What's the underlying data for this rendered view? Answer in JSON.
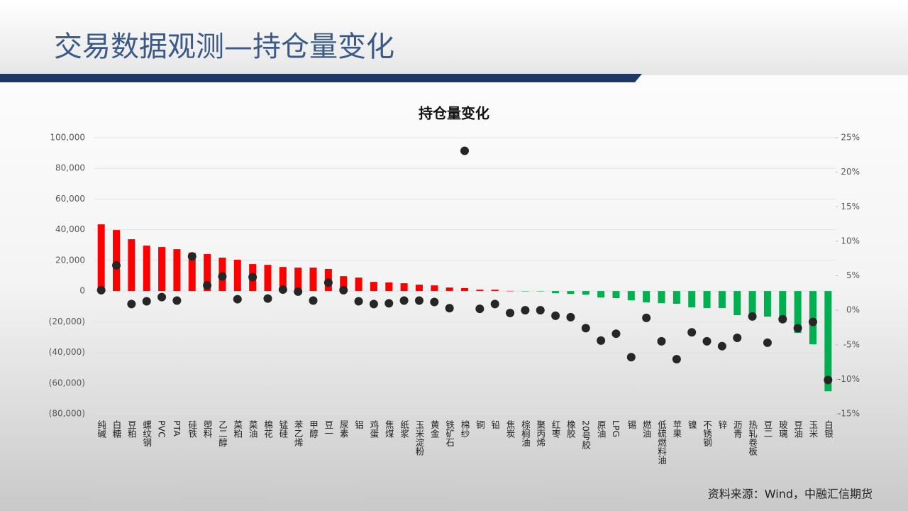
{
  "header": {
    "title": "交易数据观测—持仓量变化"
  },
  "footer": {
    "source": "资料来源：Wind，中融汇信期货"
  },
  "chart_data": {
    "type": "bar",
    "title": "持仓量变化",
    "categories": [
      "纯碱",
      "白糖",
      "豆粕",
      "螺纹钢",
      "PVC",
      "PTA",
      "硅铁",
      "塑料",
      "乙二醇",
      "菜粕",
      "菜油",
      "棉花",
      "锰硅",
      "苯乙烯",
      "甲醇",
      "豆一",
      "尿素",
      "铝",
      "鸡蛋",
      "焦煤",
      "纸浆",
      "玉米淀粉",
      "黄金",
      "铁矿石",
      "棉纱",
      "铜",
      "铅",
      "焦炭",
      "棕榈油",
      "聚丙烯",
      "红枣",
      "橡胶",
      "20号胶",
      "原油",
      "LPG",
      "锡",
      "燃油",
      "低硫燃料油",
      "苹果",
      "镍",
      "不锈钢",
      "锌",
      "沥青",
      "热轧卷板",
      "豆二",
      "玻璃",
      "豆油",
      "玉米",
      "白银"
    ],
    "series": [
      {
        "type": "bar",
        "color": "#ff0000",
        "negative_color": "#00b050",
        "values": [
          43500,
          39800,
          33800,
          29600,
          28700,
          27300,
          25000,
          24100,
          21800,
          20400,
          17600,
          17100,
          15700,
          15300,
          15300,
          14400,
          9700,
          8800,
          6000,
          5600,
          5100,
          4200,
          3700,
          2300,
          1900,
          900,
          900,
          100,
          -100,
          -200,
          -1400,
          -1900,
          -2300,
          -4200,
          -4600,
          -6000,
          -7400,
          -7900,
          -8300,
          -10600,
          -11100,
          -11100,
          -15700,
          -16700,
          -16700,
          -20400,
          -27300,
          -34700,
          -65300
        ]
      },
      {
        "type": "scatter",
        "axis": "y2",
        "color": "#262626",
        "values": [
          2.9,
          6.5,
          0.9,
          1.3,
          1.9,
          1.4,
          7.8,
          3.6,
          4.9,
          1.6,
          4.8,
          1.7,
          3.0,
          2.7,
          1.4,
          4.0,
          2.9,
          1.3,
          0.9,
          1.0,
          1.4,
          1.4,
          1.2,
          0.3,
          23.1,
          0.2,
          0.9,
          -0.4,
          0,
          0,
          -0.8,
          -1.0,
          -2.6,
          -4.4,
          -3.4,
          -6.8,
          -1.1,
          -4.5,
          -7.1,
          -3.2,
          -4.5,
          -5.2,
          -4.0,
          -0.9,
          -4.7,
          -1.3,
          -2.6,
          -1.7,
          -10.1
        ]
      }
    ],
    "ylim": [
      -80000,
      100000
    ],
    "yticks": [
      {
        "value": -80000,
        "label": "(80,000)"
      },
      {
        "value": -60000,
        "label": "(60,000)"
      },
      {
        "value": -40000,
        "label": "(40,000)"
      },
      {
        "value": -20000,
        "label": "(20,000)"
      },
      0,
      {
        "value": 20000,
        "label": "20,000"
      },
      {
        "value": 40000,
        "label": "40,000"
      },
      {
        "value": 60000,
        "label": "60,000"
      },
      {
        "value": 80000,
        "label": "80,000"
      },
      {
        "value": 100000,
        "label": "100,000"
      }
    ],
    "y2lim": [
      -15,
      25
    ],
    "y2ticks": [
      {
        "value": -15,
        "label": "-15%"
      },
      {
        "value": -10,
        "label": "-10%"
      },
      {
        "value": -5,
        "label": "-5%"
      },
      {
        "value": 0,
        "label": "0%"
      },
      {
        "value": 5,
        "label": "5%"
      },
      {
        "value": 10,
        "label": "10%"
      },
      {
        "value": 15,
        "label": "15%"
      },
      {
        "value": 20,
        "label": "20%"
      },
      {
        "value": 25,
        "label": "25%"
      }
    ],
    "grid": true
  }
}
